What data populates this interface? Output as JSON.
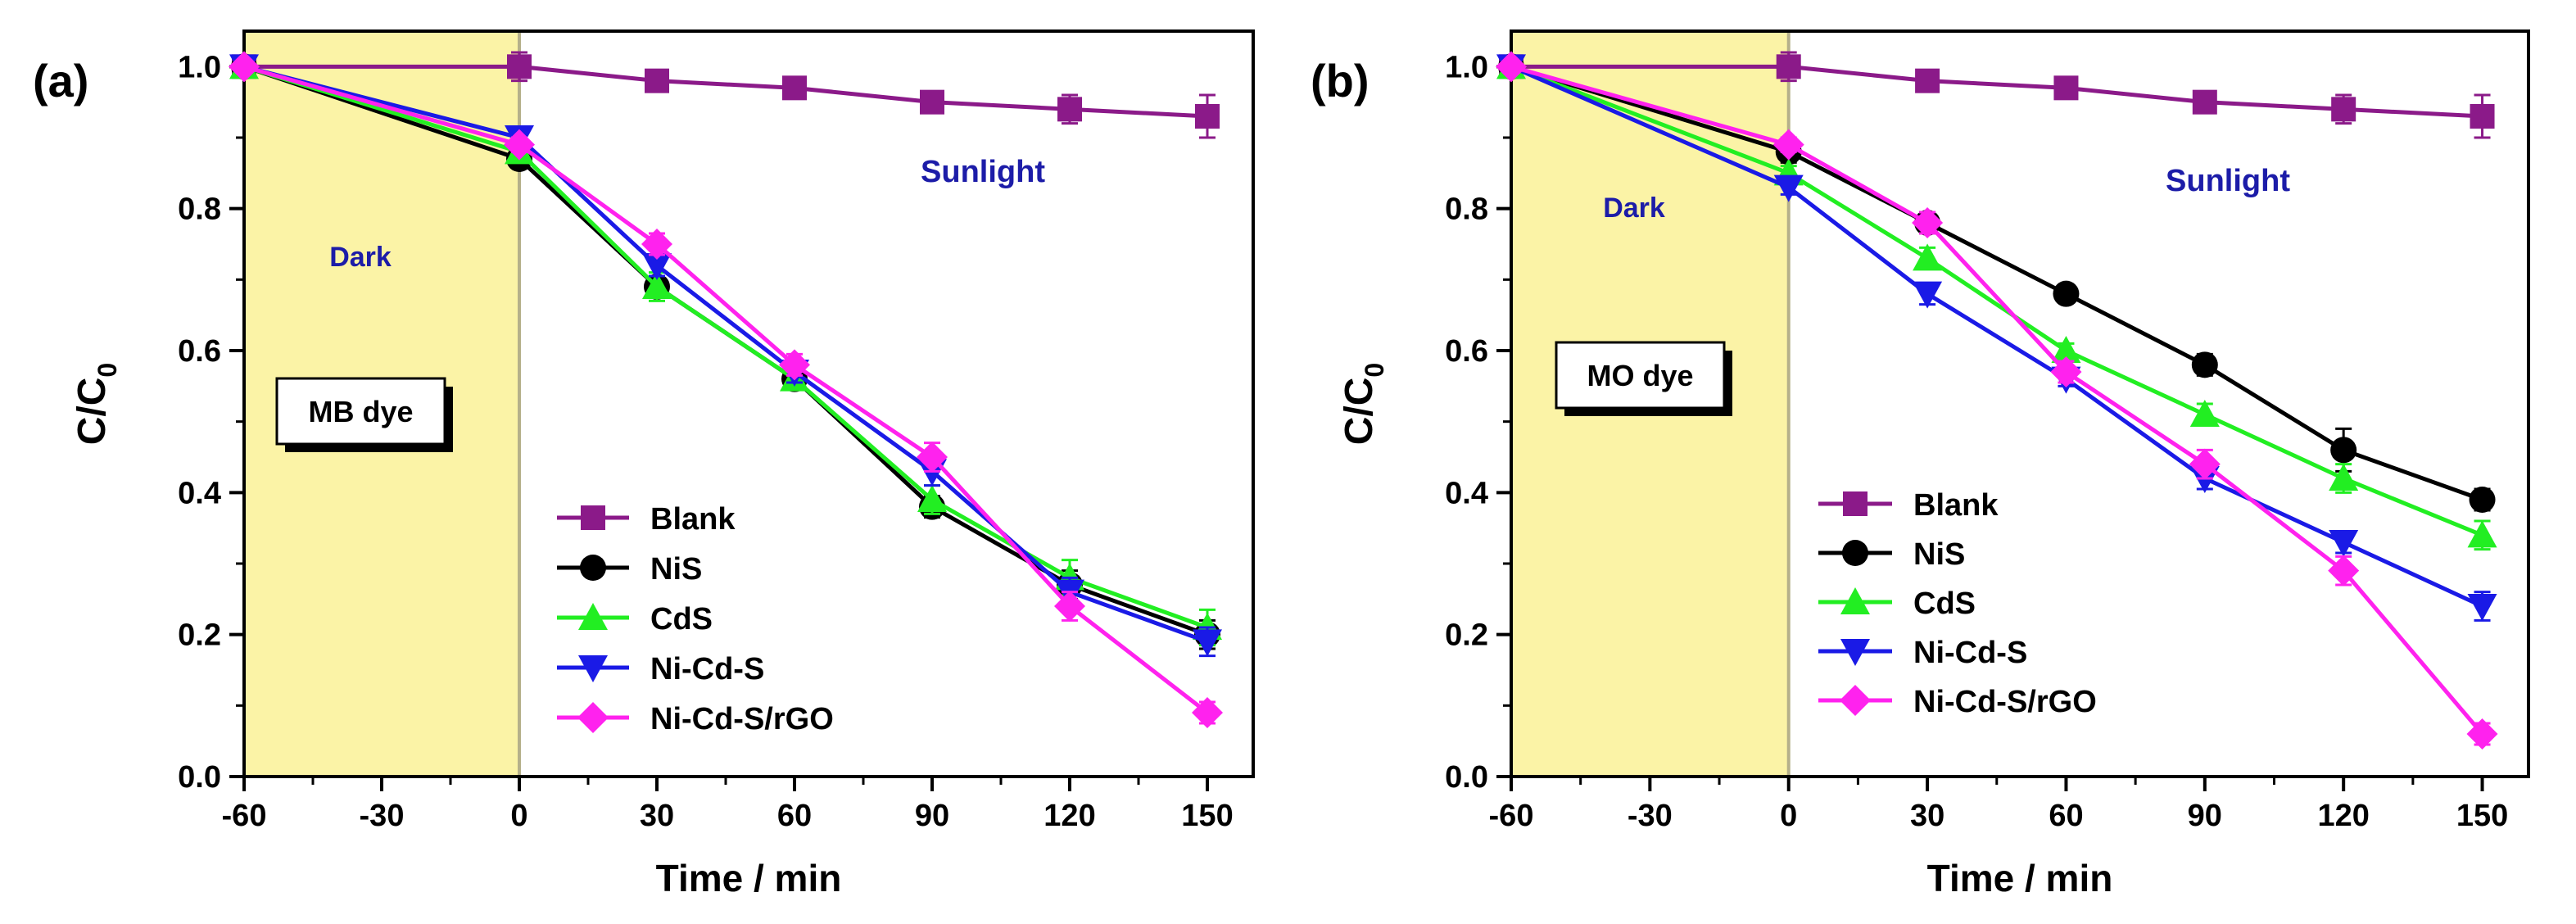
{
  "chart_data": [
    {
      "type": "line",
      "panel_label": "(a)",
      "xlabel": "Time / min",
      "ylabel": "C/C",
      "ylabel_sub": "0",
      "xlim": [
        -60,
        160
      ],
      "ylim": [
        0.0,
        1.05
      ],
      "xticks": [
        "-60",
        "-30",
        "0",
        "30",
        "60",
        "90",
        "120",
        "150"
      ],
      "xtick_values": [
        -60,
        -30,
        0,
        30,
        60,
        90,
        120,
        150
      ],
      "yticks": [
        "0.0",
        "0.2",
        "0.4",
        "0.6",
        "0.8",
        "1.0"
      ],
      "ytick_values": [
        0.0,
        0.2,
        0.4,
        0.6,
        0.8,
        1.0
      ],
      "x": [
        -60,
        0,
        30,
        60,
        90,
        120,
        150
      ],
      "dark_region": [
        -60,
        0
      ],
      "dark_label": "Dark",
      "light_label": "Sunlight",
      "dye_label": "MB dye",
      "legend": "bottom-center",
      "series": [
        {
          "name": "Blank",
          "marker": "square",
          "color": "#8b1a89",
          "values": [
            1.0,
            1.0,
            0.98,
            0.97,
            0.95,
            0.94,
            0.93
          ],
          "errors": [
            0,
            0.02,
            0.01,
            0.01,
            0.015,
            0.02,
            0.03
          ]
        },
        {
          "name": "NiS",
          "marker": "circle",
          "color": "#000000",
          "values": [
            1.0,
            0.87,
            0.69,
            0.56,
            0.38,
            0.27,
            0.2
          ],
          "errors": [
            0,
            0.01,
            0.015,
            0.015,
            0.015,
            0.02,
            0.02
          ]
        },
        {
          "name": "CdS",
          "marker": "triangle-up",
          "color": "#22ee22",
          "values": [
            1.0,
            0.88,
            0.69,
            0.56,
            0.39,
            0.28,
            0.21
          ],
          "errors": [
            0,
            0.01,
            0.02,
            0.015,
            0.02,
            0.025,
            0.025
          ]
        },
        {
          "name": "Ni-Cd-S",
          "marker": "triangle-down",
          "color": "#1a1ae6",
          "values": [
            1.0,
            0.9,
            0.72,
            0.57,
            0.43,
            0.26,
            0.19
          ],
          "errors": [
            0,
            0.01,
            0.015,
            0.015,
            0.02,
            0.02,
            0.02
          ]
        },
        {
          "name": "Ni-Cd-S/rGO",
          "marker": "diamond",
          "color": "#ff22ee",
          "values": [
            1.0,
            0.89,
            0.75,
            0.58,
            0.45,
            0.24,
            0.09
          ],
          "errors": [
            0,
            0.01,
            0.015,
            0.015,
            0.02,
            0.02,
            0.015
          ]
        }
      ]
    },
    {
      "type": "line",
      "panel_label": "(b)",
      "xlabel": "Time / min",
      "ylabel": "C/C",
      "ylabel_sub": "0",
      "xlim": [
        -60,
        160
      ],
      "ylim": [
        0.0,
        1.05
      ],
      "xticks": [
        "-60",
        "-30",
        "0",
        "30",
        "60",
        "90",
        "120",
        "150"
      ],
      "xtick_values": [
        -60,
        -30,
        0,
        30,
        60,
        90,
        120,
        150
      ],
      "yticks": [
        "0.0",
        "0.2",
        "0.4",
        "0.6",
        "0.8",
        "1.0"
      ],
      "ytick_values": [
        0.0,
        0.2,
        0.4,
        0.6,
        0.8,
        1.0
      ],
      "x": [
        -60,
        0,
        30,
        60,
        90,
        120,
        150
      ],
      "dark_region": [
        -60,
        0
      ],
      "dark_label": "Dark",
      "light_label": "Sunlight",
      "dye_label": "MO dye",
      "legend": "bottom-left",
      "series": [
        {
          "name": "Blank",
          "marker": "square",
          "color": "#8b1a89",
          "values": [
            1.0,
            1.0,
            0.98,
            0.97,
            0.95,
            0.94,
            0.93
          ],
          "errors": [
            0,
            0.02,
            0.01,
            0.01,
            0.015,
            0.02,
            0.03
          ]
        },
        {
          "name": "NiS",
          "marker": "circle",
          "color": "#000000",
          "values": [
            1.0,
            0.88,
            0.78,
            0.68,
            0.58,
            0.46,
            0.39
          ],
          "errors": [
            0,
            0.015,
            0.015,
            0.01,
            0.015,
            0.03,
            0.015
          ]
        },
        {
          "name": "CdS",
          "marker": "triangle-up",
          "color": "#22ee22",
          "values": [
            1.0,
            0.85,
            0.73,
            0.6,
            0.51,
            0.42,
            0.34
          ],
          "errors": [
            0,
            0.01,
            0.015,
            0.01,
            0.015,
            0.02,
            0.02
          ]
        },
        {
          "name": "Ni-Cd-S",
          "marker": "triangle-down",
          "color": "#1a1ae6",
          "values": [
            1.0,
            0.83,
            0.68,
            0.56,
            0.42,
            0.33,
            0.24
          ],
          "errors": [
            0,
            0.01,
            0.015,
            0.01,
            0.015,
            0.015,
            0.02
          ]
        },
        {
          "name": "Ni-Cd-S/rGO",
          "marker": "diamond",
          "color": "#ff22ee",
          "values": [
            1.0,
            0.89,
            0.78,
            0.57,
            0.44,
            0.29,
            0.06
          ],
          "errors": [
            0,
            0.01,
            0.015,
            0.015,
            0.02,
            0.02,
            0.015
          ]
        }
      ]
    }
  ]
}
